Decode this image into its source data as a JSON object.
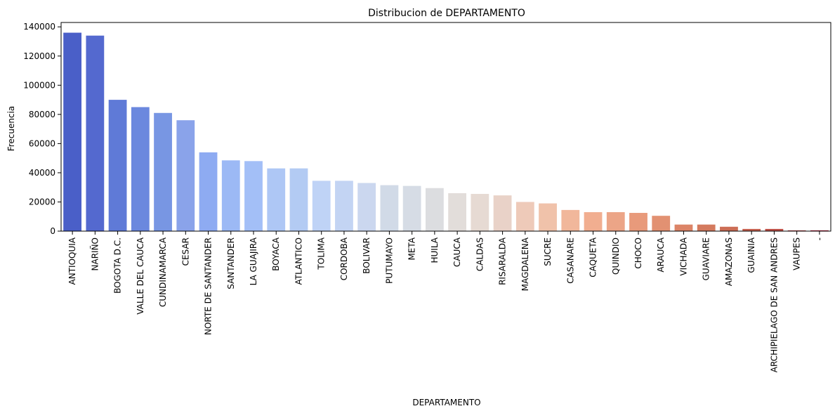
{
  "chart_data": {
    "type": "bar",
    "title": "Distribucion de DEPARTAMENTO",
    "xlabel": "DEPARTAMENTO",
    "ylabel": "Frecuencia",
    "ylim": [
      0,
      143000
    ],
    "yticks": [
      0,
      20000,
      40000,
      60000,
      80000,
      100000,
      120000,
      140000
    ],
    "ytick_labels": [
      "0",
      "20000",
      "40000",
      "60000",
      "80000",
      "100000",
      "120000",
      "140000"
    ],
    "grid": false,
    "legend": "none",
    "palette": "coolwarm",
    "categories": [
      "ANTIOQUIA",
      "NARIÑO",
      "BOGOTA D.C.",
      "VALLE DEL CAUCA",
      "CUNDINAMARCA",
      "CESAR",
      "NORTE DE SANTANDER",
      "SANTANDER",
      "LA GUAJIRA",
      "BOYACA",
      "ATLANTICO",
      "TOLIMA",
      "CORDOBA",
      "BOLIVAR",
      "PUTUMAYO",
      "META",
      "HUILA",
      "CAUCA",
      "CALDAS",
      "RISARALDA",
      "MAGDALENA",
      "SUCRE",
      "CASANARE",
      "CAQUETA",
      "QUINDIO",
      "CHOCO",
      "ARAUCA",
      "VICHADA",
      "GUAVIARE",
      "AMAZONAS",
      "GUAINIA",
      "ARCHIPIELAGO DE SAN ANDRES",
      "VAUPES",
      "-"
    ],
    "values": [
      136000,
      134000,
      90000,
      85000,
      81000,
      76000,
      54000,
      48500,
      48000,
      43000,
      43000,
      34500,
      34500,
      33000,
      31500,
      31000,
      29500,
      26000,
      25500,
      24500,
      20000,
      19000,
      14500,
      13000,
      13000,
      12500,
      10500,
      4500,
      4500,
      3000,
      1500,
      1500,
      500,
      500
    ],
    "colors": [
      "#4a5fc8",
      "#5469cf",
      "#5f7ad7",
      "#6b88de",
      "#7896e3",
      "#8aa3ea",
      "#8eabf2",
      "#9cb9f5",
      "#a3bff7",
      "#aec7f5",
      "#b3cbf3",
      "#bfd3f6",
      "#c3d4f3",
      "#cbd7ef",
      "#d1dae7",
      "#d6dce5",
      "#dcdde0",
      "#e2ddda",
      "#e6dad3",
      "#e9d2c8",
      "#eecab9",
      "#f0c2aa",
      "#f1b79b",
      "#f1ae90",
      "#eca587",
      "#e89a7b",
      "#e29172",
      "#dc8467",
      "#d47a5e",
      "#cc6d55",
      "#c45e4c",
      "#bc4c43",
      "#b6393b",
      "#b40426"
    ]
  }
}
